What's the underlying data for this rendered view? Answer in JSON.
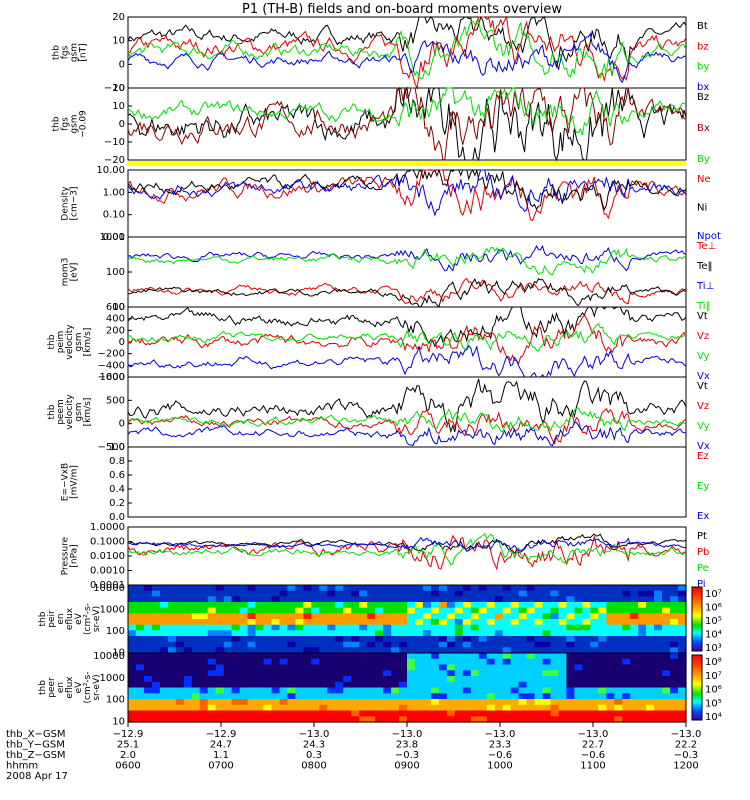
{
  "title": "P1  (TH-B) fields and on-board moments overview",
  "chart_data": [
    {
      "type": "line",
      "ylabel": [
        "thb",
        "fgs",
        "gsm",
        "[nT]"
      ],
      "yticks": [
        "20",
        "10",
        "0",
        "−10"
      ],
      "ylim": [
        -20,
        20
      ],
      "series": [
        {
          "name": "Bt",
          "color": "#000000",
          "base": 9,
          "noise": 2.5
        },
        {
          "name": "bz",
          "color": "#e00000",
          "base": 3,
          "noise": 3
        },
        {
          "name": "by",
          "color": "#00e000",
          "base": 1,
          "noise": 2.5
        },
        {
          "name": "bx",
          "color": "#0000e0",
          "base": -4,
          "noise": 2
        }
      ]
    },
    {
      "type": "line",
      "ylabel": [
        "thb",
        "fgs",
        "gsm",
        "−0.09"
      ],
      "yticks": [
        "20",
        "10",
        "0",
        "−10",
        "−20"
      ],
      "ylim": [
        -25,
        20
      ],
      "series": [
        {
          "name": "Bz",
          "color": "#000000",
          "base": -3,
          "noise": 6
        },
        {
          "name": "Bx",
          "color": "#8b0000",
          "base": -1,
          "noise": 5
        },
        {
          "name": "By",
          "color": "#00e000",
          "base": 5,
          "noise": 3
        }
      ]
    },
    {
      "type": "line",
      "scale": "log",
      "ylabel": [
        "Density",
        "[cm−3]"
      ],
      "yticks": [
        "10.00",
        "1.00",
        "0.10",
        "0.01"
      ],
      "ylim": [
        0.01,
        20
      ],
      "series": [
        {
          "name": "Ne",
          "color": "#e00000",
          "base": 3,
          "noise": 0.5
        },
        {
          "name": "Ni",
          "color": "#000000",
          "base": 3,
          "noise": 0.4
        },
        {
          "name": "Npot",
          "color": "#0000e0",
          "base": 2.5,
          "noise": 0.4
        }
      ]
    },
    {
      "type": "line",
      "scale": "log",
      "ylabel": [
        "mom3",
        "[eV]"
      ],
      "yticks": [
        "1000",
        "100",
        "10"
      ],
      "ylim": [
        5,
        8000
      ],
      "series": [
        {
          "name": "Te⊥",
          "color": "#e00000",
          "base": 30,
          "noise": 0.2
        },
        {
          "name": "Te‖",
          "color": "#000000",
          "base": 25,
          "noise": 0.2
        },
        {
          "name": "Ti⊥",
          "color": "#0000e0",
          "base": 1000,
          "noise": 0.2
        },
        {
          "name": "Ti‖",
          "color": "#00e000",
          "base": 800,
          "noise": 0.2
        }
      ]
    },
    {
      "type": "line",
      "ylabel": [
        "thb",
        "peim",
        "velocity",
        "gsm",
        "[km/s]"
      ],
      "yticks": [
        "600",
        "400",
        "200",
        "0",
        "−200",
        "−400",
        "−600"
      ],
      "ylim": [
        -600,
        600
      ],
      "series": [
        {
          "name": "Vt",
          "color": "#000000",
          "base": 380,
          "noise": 60
        },
        {
          "name": "Vz",
          "color": "#e00000",
          "base": 0,
          "noise": 60
        },
        {
          "name": "Vy",
          "color": "#00e000",
          "base": 80,
          "noise": 40
        },
        {
          "name": "Vx",
          "color": "#0000e0",
          "base": -340,
          "noise": 50
        }
      ]
    },
    {
      "type": "line",
      "ylabel": [
        "thb",
        "peem",
        "velocity",
        "gsm",
        "[km/s]"
      ],
      "yticks": [
        "1000",
        "500",
        "0",
        "−500"
      ],
      "ylim": [
        -800,
        1500
      ],
      "series": [
        {
          "name": "Vt",
          "color": "#000000",
          "base": 420,
          "noise": 150
        },
        {
          "name": "Vz",
          "color": "#e00000",
          "base": 0,
          "noise": 100
        },
        {
          "name": "Vy",
          "color": "#00e000",
          "base": 60,
          "noise": 80
        },
        {
          "name": "Vx",
          "color": "#0000e0",
          "base": -360,
          "noise": 90
        }
      ]
    },
    {
      "type": "line",
      "ylabel": [
        "E=−VxB",
        "[mV/m]"
      ],
      "yticks": [
        "1.0",
        "0.8",
        "0.6",
        "0.4",
        "0.2",
        "0.0"
      ],
      "ylim": [
        0,
        1
      ],
      "series": [
        {
          "name": "Ez",
          "color": "#e00000",
          "base": null,
          "noise": 0
        },
        {
          "name": "Ey",
          "color": "#00e000",
          "base": null,
          "noise": 0
        },
        {
          "name": "Ex",
          "color": "#0000e0",
          "base": null,
          "noise": 0
        }
      ]
    },
    {
      "type": "line",
      "scale": "log",
      "ylabel": [
        "Pressure",
        "[nPa]"
      ],
      "yticks": [
        "1.0000",
        "0.1000",
        "0.0100",
        "0.0010",
        "0.0001"
      ],
      "ylim": [
        0.0001,
        1
      ],
      "series": [
        {
          "name": "Pt",
          "color": "#000000",
          "base": 0.08,
          "noise": 0.2
        },
        {
          "name": "Pb",
          "color": "#e00000",
          "base": 0.03,
          "noise": 0.5
        },
        {
          "name": "Pe",
          "color": "#00e000",
          "base": 0.02,
          "noise": 0.3
        },
        {
          "name": "Pi",
          "color": "#0000e0",
          "base": 0.06,
          "noise": 0.2
        }
      ]
    },
    {
      "type": "heatmap",
      "ylabel": [
        "thb",
        "peir",
        "en",
        "eflux",
        "eV",
        "(cm²-s-",
        "sr-eV)"
      ],
      "yticks": [
        "10000",
        "1000",
        "100",
        "10"
      ],
      "colorbar": [
        "10⁷",
        "10⁶",
        "10⁵",
        "10⁴",
        "10³"
      ]
    },
    {
      "type": "heatmap",
      "ylabel": [
        "thb",
        "peer",
        "en",
        "eflux",
        "eV",
        "(cm²-s-",
        "sr-eV)"
      ],
      "yticks": [
        "10000",
        "1000",
        "100",
        "10"
      ],
      "colorbar": [
        "10⁸",
        "10⁷",
        "10⁶",
        "10⁵",
        "10⁴"
      ]
    }
  ],
  "footer": {
    "rows": [
      {
        "label": "thb_X−GSM",
        "values": [
          "−12.9",
          "−12.9",
          "−13.0",
          "−13.0",
          "−13.0",
          "−13.0",
          "−13.0"
        ]
      },
      {
        "label": "thb_Y−GSM",
        "values": [
          "25.1",
          "24.7",
          "24.3",
          "23.8",
          "23.3",
          "22.7",
          "22.2"
        ]
      },
      {
        "label": "thb_Z−GSM",
        "values": [
          "2.0",
          "1.1",
          "0.3",
          "−0.3",
          "−0.6",
          "−0.6",
          "−0.3"
        ]
      },
      {
        "label": "hhmm",
        "values": [
          "0600",
          "0700",
          "0800",
          "0900",
          "1000",
          "1100",
          "1200"
        ]
      }
    ],
    "date": "2008 Apr 17"
  }
}
